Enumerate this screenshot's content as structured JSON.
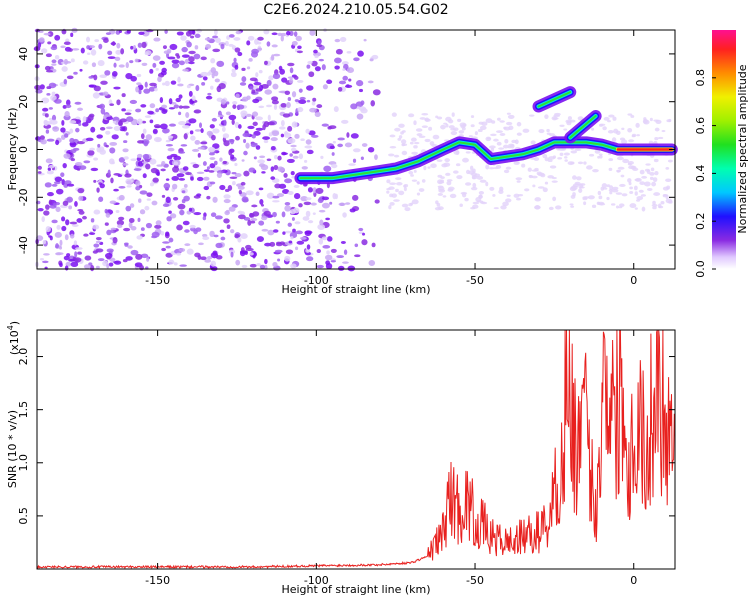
{
  "title": "C2E6.2024.210.05.54.G02",
  "chart_data": [
    {
      "type": "heatmap",
      "xlabel": "Height of straight line (km)",
      "ylabel": "Frequency (Hz)",
      "xlim": [
        -188,
        13
      ],
      "ylim": [
        -50,
        50
      ],
      "xticks": [
        -150,
        -100,
        -50,
        0
      ],
      "xtick_labels": [
        "-150",
        "-100",
        "-50",
        "0"
      ],
      "yticks": [
        -40,
        -20,
        0,
        20,
        40
      ],
      "ytick_labels": [
        "-40",
        "-20",
        "0",
        "20",
        "40"
      ],
      "colorbar": {
        "label": "Normalized spectral amplitude",
        "range": [
          0,
          1
        ],
        "ticks": [
          0.0,
          0.2,
          0.4,
          0.6,
          0.8
        ],
        "tick_labels": [
          "0.0",
          "0.2",
          "0.4",
          "0.6",
          "0.8"
        ],
        "colormap": "rainbow"
      },
      "track": [
        {
          "x": -105,
          "y": -12
        },
        {
          "x": -95,
          "y": -12
        },
        {
          "x": -85,
          "y": -10
        },
        {
          "x": -75,
          "y": -8
        },
        {
          "x": -68,
          "y": -5
        },
        {
          "x": -60,
          "y": 0
        },
        {
          "x": -55,
          "y": 3
        },
        {
          "x": -50,
          "y": 2
        },
        {
          "x": -45,
          "y": -4
        },
        {
          "x": -40,
          "y": -3
        },
        {
          "x": -35,
          "y": -2
        },
        {
          "x": -30,
          "y": 0
        },
        {
          "x": -25,
          "y": 3
        },
        {
          "x": -20,
          "y": 3
        },
        {
          "x": -15,
          "y": 3
        },
        {
          "x": -10,
          "y": 2
        },
        {
          "x": -5,
          "y": 0
        },
        {
          "x": 0,
          "y": 0
        },
        {
          "x": 5,
          "y": 0
        },
        {
          "x": 12,
          "y": 0
        }
      ],
      "branches": [
        {
          "x": [
            -30,
            -20
          ],
          "y": [
            18,
            24
          ]
        },
        {
          "x": [
            -20,
            -12
          ],
          "y": [
            5,
            14
          ]
        }
      ]
    },
    {
      "type": "line",
      "xlabel": "Height of straight line (km)",
      "ylabel": "SNR (10 * v/v)",
      "y_multiplier": "(x10",
      "y_multiplier_exp": "4",
      "xlim": [
        -188,
        13
      ],
      "ylim": [
        0,
        2.25
      ],
      "xticks": [
        -150,
        -100,
        -50,
        0
      ],
      "xtick_labels": [
        "-150",
        "-100",
        "-50",
        "0"
      ],
      "yticks": [
        0.5,
        1.0,
        1.5,
        2.0
      ],
      "ytick_labels": [
        "0.5",
        "1.0",
        "1.5",
        "2.0"
      ],
      "line_color": "#e8201e",
      "series": [
        {
          "x": [
            -188,
            -120,
            -100,
            -80,
            -70,
            -65,
            -60,
            -58,
            -55,
            -52,
            -50,
            -47,
            -45,
            -40,
            -35,
            -30,
            -27,
            -25,
            -22,
            -21,
            -20,
            -18,
            -15,
            -12,
            -10,
            -8,
            -6,
            -4,
            -2,
            0,
            2,
            4,
            6,
            8,
            10,
            13
          ],
          "y": [
            0.02,
            0.02,
            0.03,
            0.04,
            0.06,
            0.12,
            0.35,
            0.7,
            0.55,
            0.65,
            0.45,
            0.4,
            0.3,
            0.25,
            0.3,
            0.35,
            0.45,
            0.7,
            1.1,
            2.25,
            1.4,
            1.2,
            1.3,
            0.5,
            1.6,
            2.0,
            1.3,
            1.9,
            1.0,
            1.2,
            1.5,
            0.9,
            1.6,
            1.8,
            1.4,
            1.3
          ]
        }
      ]
    }
  ]
}
